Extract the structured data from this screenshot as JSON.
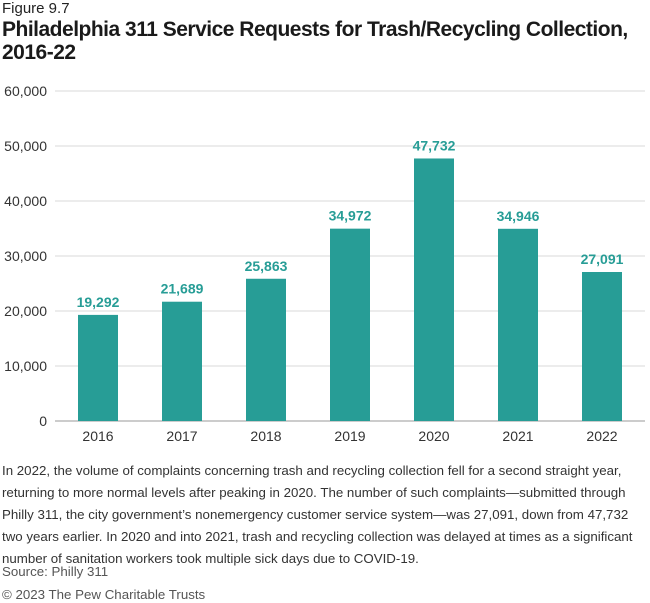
{
  "figure_label": "Figure 9.7",
  "chart_data": {
    "type": "bar",
    "title": "Philadelphia 311 Service Requests for Trash/Recycling Collection, 2016-22",
    "categories": [
      "2016",
      "2017",
      "2018",
      "2019",
      "2020",
      "2021",
      "2022"
    ],
    "values": [
      19292,
      21689,
      25863,
      34972,
      47732,
      34946,
      27091
    ],
    "data_labels": [
      "19,292",
      "21,689",
      "25,863",
      "34,972",
      "47,732",
      "34,946",
      "27,091"
    ],
    "yticks": [
      0,
      10000,
      20000,
      30000,
      40000,
      50000,
      60000
    ],
    "ytick_labels": [
      "0",
      "10,000",
      "20,000",
      "30,000",
      "40,000",
      "50,000",
      "60,000"
    ],
    "ylim": [
      0,
      60000
    ],
    "xlabel": "",
    "ylabel": "",
    "grid": true,
    "colors": {
      "bar": "#279d96",
      "label": "#279d96",
      "grid": "#d9d9d9",
      "axis": "#999999"
    }
  },
  "note": "In 2022, the volume of complaints concerning trash and recycling collection fell for a second straight year, returning to more normal levels after peaking in 2020. The number of such complaints—submitted through Philly 311, the city government’s nonemergency customer service system—was 27,091, down from 47,732 two years earlier. In 2020 and into 2021, trash and recycling collection was delayed at times as a significant number of sanitation workers took multiple sick days due to COVID-19.",
  "source": "Source: Philly 311",
  "copyright": "© 2023 The Pew Charitable Trusts"
}
